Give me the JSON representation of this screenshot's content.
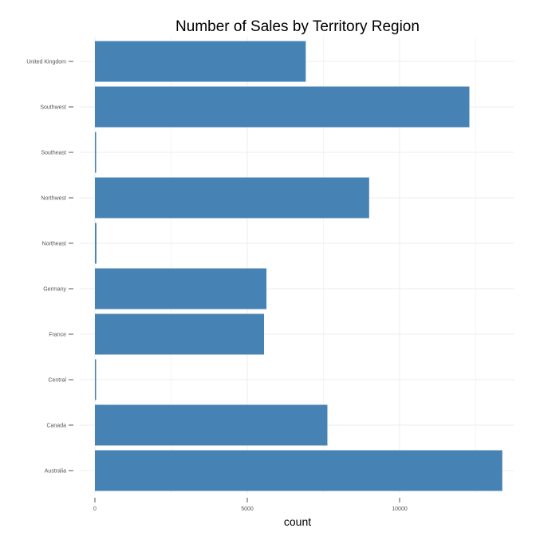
{
  "chart_data": {
    "type": "bar",
    "orientation": "horizontal",
    "title": "Number of Sales by Territory Region",
    "xlabel": "count",
    "ylabel": "",
    "categories": [
      "United Kingdom",
      "Southwest",
      "Southeast",
      "Northwest",
      "Northeast",
      "Germany",
      "France",
      "Central",
      "Canada",
      "Australia"
    ],
    "values": [
      6920,
      12290,
      40,
      9000,
      50,
      5630,
      5550,
      30,
      7630,
      13370
    ],
    "xticks": [
      0,
      5000,
      10000
    ],
    "xtick_labels": [
      "0",
      "5000",
      "10000"
    ],
    "xlim": [
      0,
      13900
    ],
    "grid": true,
    "bar_color": "#4682B4"
  }
}
